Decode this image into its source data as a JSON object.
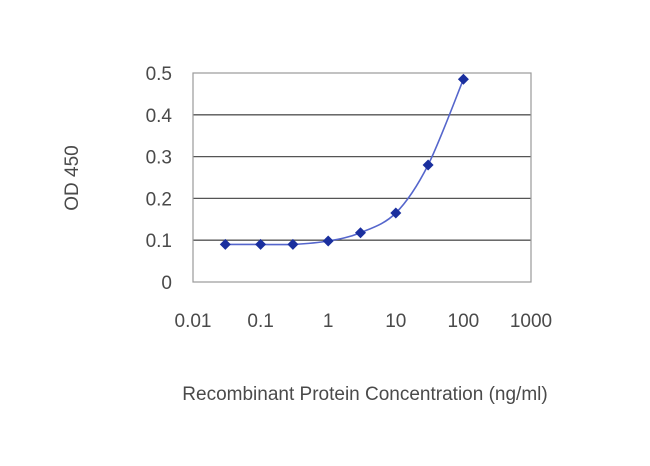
{
  "chart_data": {
    "type": "line",
    "title": "",
    "xlabel": "Recombinant Protein Concentration (ng/ml)",
    "ylabel": "OD 450",
    "xscale": "log",
    "xlim": [
      0.01,
      1000
    ],
    "ylim": [
      0,
      0.5
    ],
    "x_ticks": [
      "0.01",
      "0.1",
      "1",
      "10",
      "100",
      "1000"
    ],
    "y_ticks": [
      "0",
      "0.1",
      "0.2",
      "0.3",
      "0.4",
      "0.5"
    ],
    "grid": "horizontal",
    "legend": "none",
    "series": [
      {
        "x": [
          0.03,
          0.1,
          0.3,
          1,
          3,
          10,
          30,
          100
        ],
        "y": [
          0.09,
          0.09,
          0.09,
          0.098,
          0.118,
          0.165,
          0.28,
          0.485
        ],
        "color": "#1a2f9e",
        "marker": "diamond"
      }
    ],
    "colors": {
      "line": "#5566cc",
      "marker": "#1a2f9e",
      "grid": "#555555",
      "frame": "#9a9a9a"
    }
  }
}
